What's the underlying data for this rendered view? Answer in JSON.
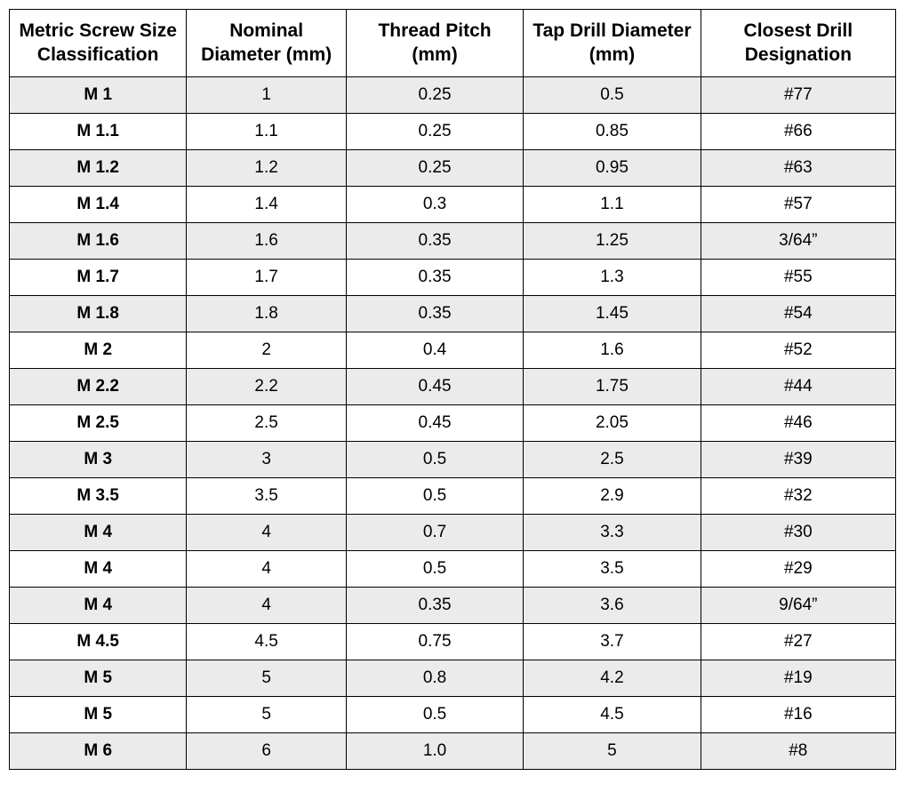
{
  "table": {
    "columns": [
      "Metric Screw Size Classification",
      "Nominal Diameter (mm)",
      "Thread Pitch (mm)",
      "Tap Drill Diameter (mm)",
      "Closest Drill Designation"
    ],
    "column_widths": [
      "20%",
      "18%",
      "20%",
      "20%",
      "22%"
    ],
    "header_fontsize": 21,
    "header_fontweight": 700,
    "cell_fontsize": 19,
    "first_col_fontweight": 700,
    "border_color": "#000000",
    "shaded_bg": "#ebebeb",
    "plain_bg": "#ffffff",
    "rows": [
      {
        "shaded": true,
        "cells": [
          "M 1",
          "1",
          "0.25",
          "0.5",
          "#77"
        ]
      },
      {
        "shaded": false,
        "cells": [
          "M 1.1",
          "1.1",
          "0.25",
          "0.85",
          "#66"
        ]
      },
      {
        "shaded": true,
        "cells": [
          "M 1.2",
          "1.2",
          "0.25",
          "0.95",
          "#63"
        ]
      },
      {
        "shaded": false,
        "cells": [
          "M 1.4",
          "1.4",
          "0.3",
          "1.1",
          "#57"
        ]
      },
      {
        "shaded": true,
        "cells": [
          "M 1.6",
          "1.6",
          "0.35",
          "1.25",
          "3/64”"
        ]
      },
      {
        "shaded": false,
        "cells": [
          "M 1.7",
          "1.7",
          "0.35",
          "1.3",
          "#55"
        ]
      },
      {
        "shaded": true,
        "cells": [
          "M 1.8",
          "1.8",
          "0.35",
          "1.45",
          "#54"
        ]
      },
      {
        "shaded": false,
        "cells": [
          "M 2",
          "2",
          "0.4",
          "1.6",
          "#52"
        ]
      },
      {
        "shaded": true,
        "cells": [
          "M 2.2",
          "2.2",
          "0.45",
          "1.75",
          "#44"
        ]
      },
      {
        "shaded": false,
        "cells": [
          "M 2.5",
          "2.5",
          "0.45",
          "2.05",
          "#46"
        ]
      },
      {
        "shaded": true,
        "cells": [
          "M 3",
          "3",
          "0.5",
          "2.5",
          "#39"
        ]
      },
      {
        "shaded": false,
        "cells": [
          "M 3.5",
          "3.5",
          "0.5",
          "2.9",
          "#32"
        ]
      },
      {
        "shaded": true,
        "cells": [
          "M 4",
          "4",
          "0.7",
          "3.3",
          "#30"
        ]
      },
      {
        "shaded": false,
        "cells": [
          "M 4",
          "4",
          "0.5",
          "3.5",
          "#29"
        ]
      },
      {
        "shaded": true,
        "cells": [
          "M 4",
          "4",
          "0.35",
          "3.6",
          "9/64”"
        ]
      },
      {
        "shaded": false,
        "cells": [
          "M 4.5",
          "4.5",
          "0.75",
          "3.7",
          "#27"
        ]
      },
      {
        "shaded": true,
        "cells": [
          "M 5",
          "5",
          "0.8",
          "4.2",
          "#19"
        ]
      },
      {
        "shaded": false,
        "cells": [
          "M 5",
          "5",
          "0.5",
          "4.5",
          "#16"
        ]
      },
      {
        "shaded": true,
        "cells": [
          "M 6",
          "6",
          "1.0",
          "5",
          "#8"
        ]
      }
    ]
  }
}
